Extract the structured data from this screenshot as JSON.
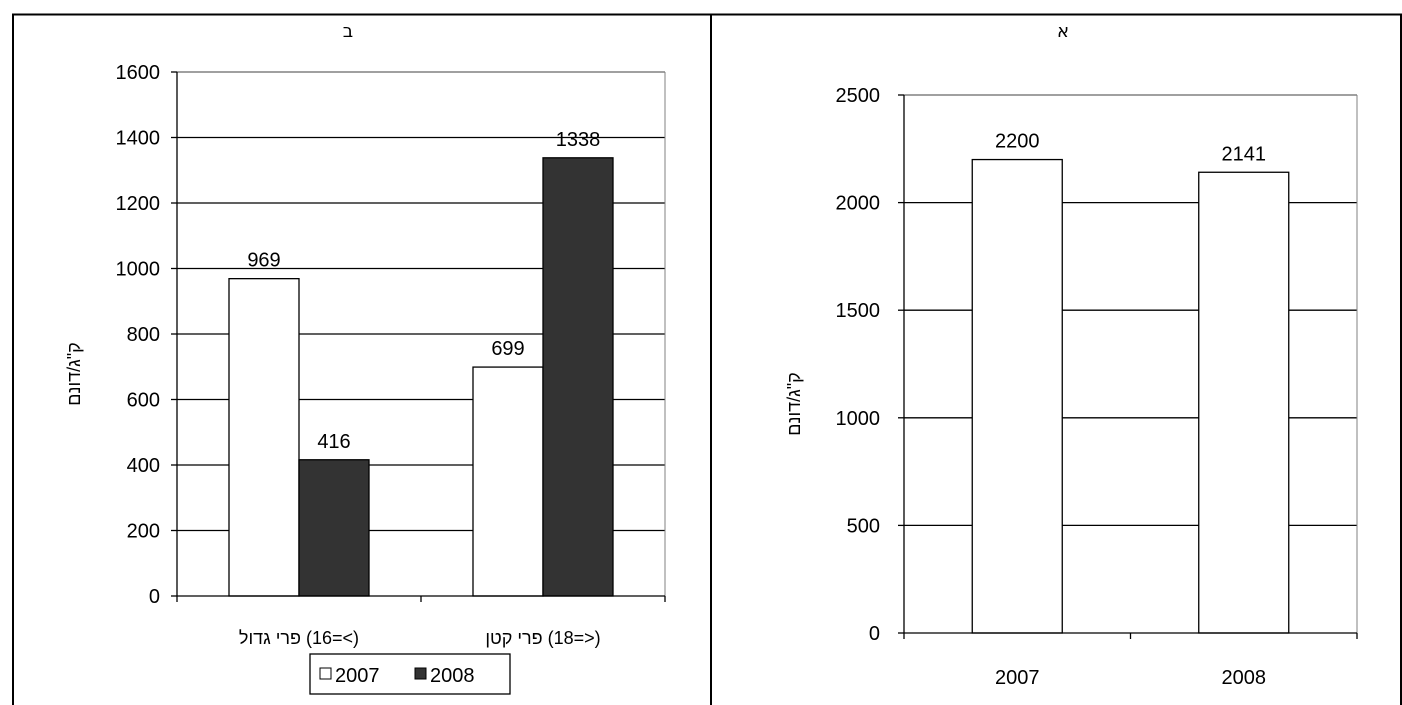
{
  "chart_data": [
    {
      "panel": "ב",
      "type": "bar",
      "categories": [
        "(>=16) פרי גדול",
        "(<=18) פרי קטן"
      ],
      "series": [
        {
          "name": "2007",
          "values": [
            969,
            699
          ]
        },
        {
          "name": "2008",
          "values": [
            416,
            1338
          ]
        }
      ],
      "data_labels": [
        [
          "969",
          "699"
        ],
        [
          "416",
          "1338"
        ]
      ],
      "ylabel": "ק\"ג/דונם",
      "ylim": [
        0,
        1600
      ],
      "yticks": [
        0,
        200,
        400,
        600,
        800,
        1000,
        1200,
        1400,
        1600
      ],
      "grid": true,
      "legend": "bottom",
      "colors": {
        "2007": "#ffffff",
        "2008": "#333333"
      }
    },
    {
      "panel": "א",
      "type": "bar",
      "categories": [
        "2007",
        "2008"
      ],
      "series": [
        {
          "values": [
            2200,
            2141
          ]
        }
      ],
      "data_labels": [
        [
          "2200",
          "2141"
        ]
      ],
      "ylabel": "ק\"ג/דונם",
      "ylim": [
        0,
        2500
      ],
      "yticks": [
        0,
        500,
        1000,
        1500,
        2000,
        2500
      ],
      "grid": true,
      "legend": "none",
      "colors": {
        "bar": "#ffffff"
      }
    }
  ]
}
